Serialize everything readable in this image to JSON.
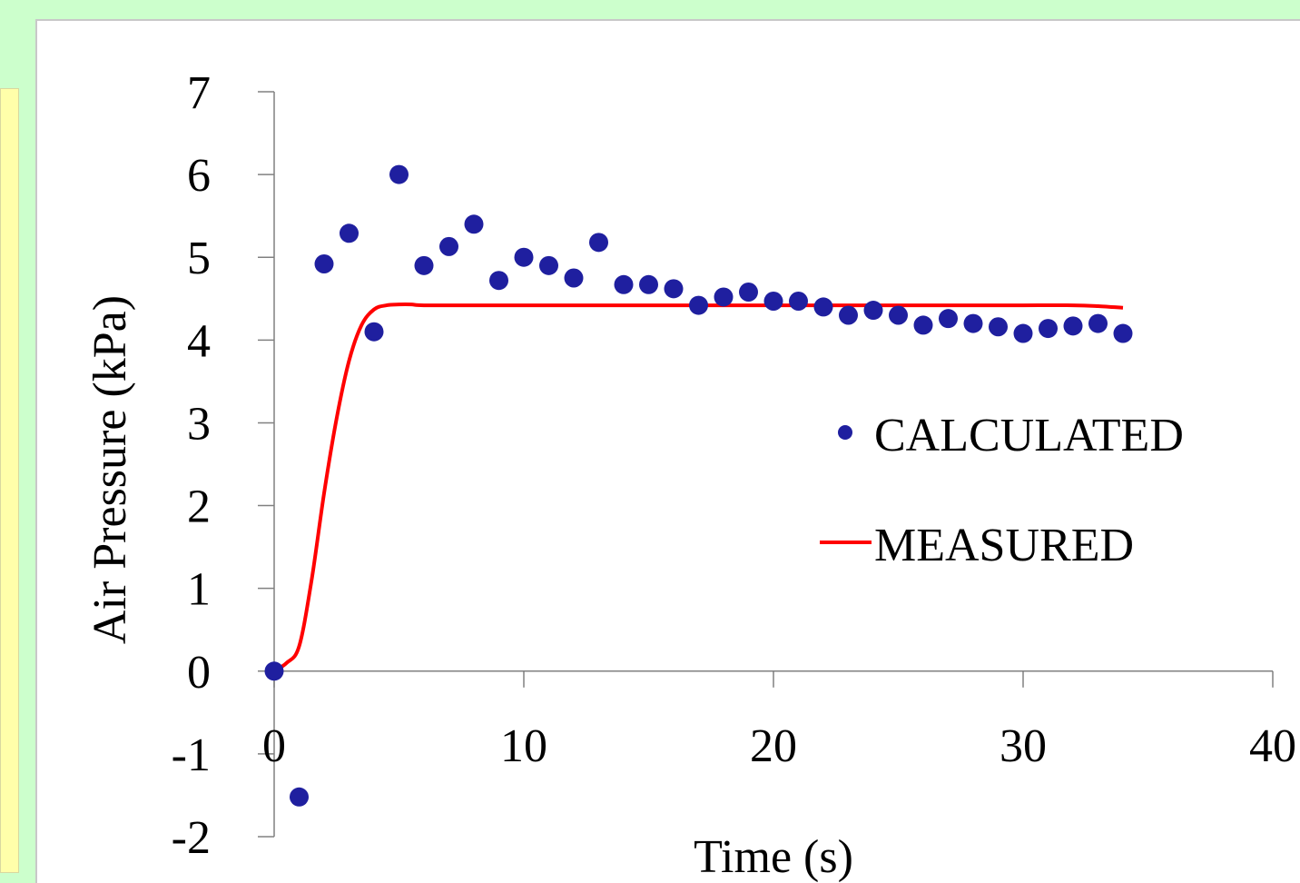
{
  "colors": {
    "background": "#ccffcc",
    "side_panel": "#ffffaa",
    "chart_panel": "#ffffff",
    "calculated": "#1f1f9f",
    "measured": "#ff0000",
    "axis": "#808080"
  },
  "chart_data": {
    "type": "scatter",
    "title": "",
    "xlabel": "Time (s)",
    "ylabel": "Air Pressure (kPa)",
    "xlim": [
      0,
      40
    ],
    "ylim": [
      -2,
      7
    ],
    "x_ticks": [
      "0",
      "10",
      "20",
      "30",
      "40"
    ],
    "y_ticks": [
      "-2",
      "-1",
      "0",
      "1",
      "2",
      "3",
      "4",
      "5",
      "6",
      "7"
    ],
    "grid": false,
    "legend_position": "right-middle",
    "series": [
      {
        "name": "CALCULATED",
        "kind": "markers",
        "color": "#1f1f9f",
        "x": [
          0,
          1,
          2,
          3,
          4,
          5,
          6,
          7,
          8,
          9,
          10,
          11,
          12,
          13,
          14,
          15,
          16,
          17,
          18,
          19,
          20,
          21,
          22,
          23,
          24,
          25,
          26,
          27,
          28,
          29,
          30,
          31,
          32,
          33,
          34
        ],
        "y": [
          0,
          -1.52,
          4.92,
          5.29,
          4.1,
          6.0,
          4.9,
          5.13,
          5.4,
          4.72,
          5.0,
          4.9,
          4.75,
          5.18,
          4.67,
          4.67,
          4.62,
          4.42,
          4.52,
          4.58,
          4.47,
          4.47,
          4.4,
          4.3,
          4.36,
          4.3,
          4.18,
          4.26,
          4.2,
          4.16,
          4.08,
          4.14,
          4.17,
          4.2,
          4.08
        ]
      },
      {
        "name": "MEASURED",
        "kind": "line",
        "color": "#ff0000",
        "x": [
          0,
          0.5,
          1,
          1.5,
          2,
          2.5,
          3,
          3.5,
          4,
          4.5,
          5,
          5.5,
          6,
          8,
          10,
          15,
          20,
          25,
          30,
          32,
          33,
          34
        ],
        "y": [
          0,
          0.1,
          0.3,
          1.1,
          2.15,
          3.05,
          3.75,
          4.18,
          4.37,
          4.42,
          4.43,
          4.43,
          4.42,
          4.42,
          4.42,
          4.42,
          4.42,
          4.42,
          4.42,
          4.42,
          4.41,
          4.39
        ]
      }
    ]
  }
}
